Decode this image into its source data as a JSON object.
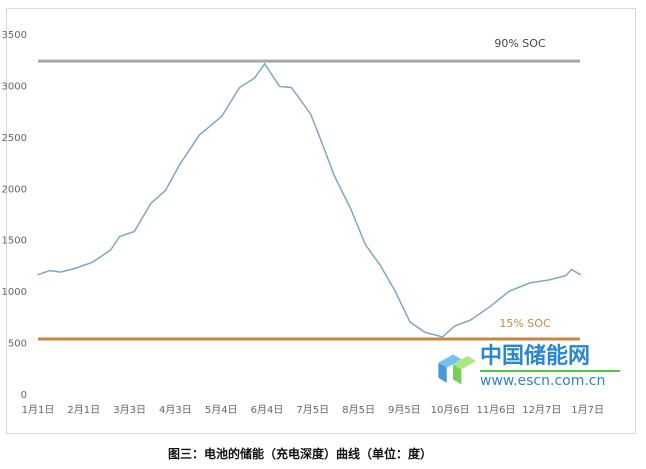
{
  "caption": "图三：电池的储能（充电深度）曲线（单位：度）",
  "watermark": {
    "name": "中国储能网",
    "url": "www.escn.com.cn"
  },
  "chart_data": {
    "type": "line",
    "title": "",
    "xlabel": "",
    "ylabel": "",
    "ylim": [
      0,
      3500
    ],
    "yticks": [
      "0",
      "500",
      "1000",
      "1500",
      "2000",
      "2500",
      "3000",
      "3500"
    ],
    "xticks": [
      "1月1日",
      "2月1日",
      "3月3日",
      "4月3日",
      "5月4日",
      "6月4日",
      "7月5日",
      "8月5日",
      "9月5日",
      "10月6日",
      "11月6日",
      "12月7日",
      "1月7日"
    ],
    "grid": false,
    "colors": {
      "series": "#7ea7c4",
      "upper": "#a6a6a6",
      "lower": "#c9863d"
    },
    "reference_lines": [
      {
        "label": "90% SOC",
        "value": 3236
      },
      {
        "label": "15% SOC",
        "value": 535
      }
    ],
    "series": [
      {
        "points": [
          [
            "01-01",
            1160
          ],
          [
            "01-09",
            1200
          ],
          [
            "01-16",
            1185
          ],
          [
            "01-26",
            1220
          ],
          [
            "02-07",
            1283
          ],
          [
            "02-19",
            1400
          ],
          [
            "02-25",
            1530
          ],
          [
            "03-07",
            1580
          ],
          [
            "03-18",
            1850
          ],
          [
            "03-28",
            1980
          ],
          [
            "04-07",
            2240
          ],
          [
            "04-20",
            2520
          ],
          [
            "05-05",
            2700
          ],
          [
            "05-17",
            2980
          ],
          [
            "05-27",
            3070
          ],
          [
            "06-03",
            3210
          ],
          [
            "06-13",
            2990
          ],
          [
            "06-21",
            2980
          ],
          [
            "07-04",
            2720
          ],
          [
            "07-10",
            2500
          ],
          [
            "07-20",
            2120
          ],
          [
            "07-31",
            1800
          ],
          [
            "08-10",
            1450
          ],
          [
            "08-20",
            1250
          ],
          [
            "08-30",
            1000
          ],
          [
            "09-09",
            700
          ],
          [
            "09-19",
            600
          ],
          [
            "10-01",
            555
          ],
          [
            "10-09",
            660
          ],
          [
            "10-20",
            720
          ],
          [
            "11-02",
            850
          ],
          [
            "11-15",
            1000
          ],
          [
            "11-29",
            1080
          ],
          [
            "12-12",
            1110
          ],
          [
            "12-23",
            1150
          ],
          [
            "12-27",
            1210
          ],
          [
            "01-02",
            1160
          ]
        ]
      }
    ]
  }
}
